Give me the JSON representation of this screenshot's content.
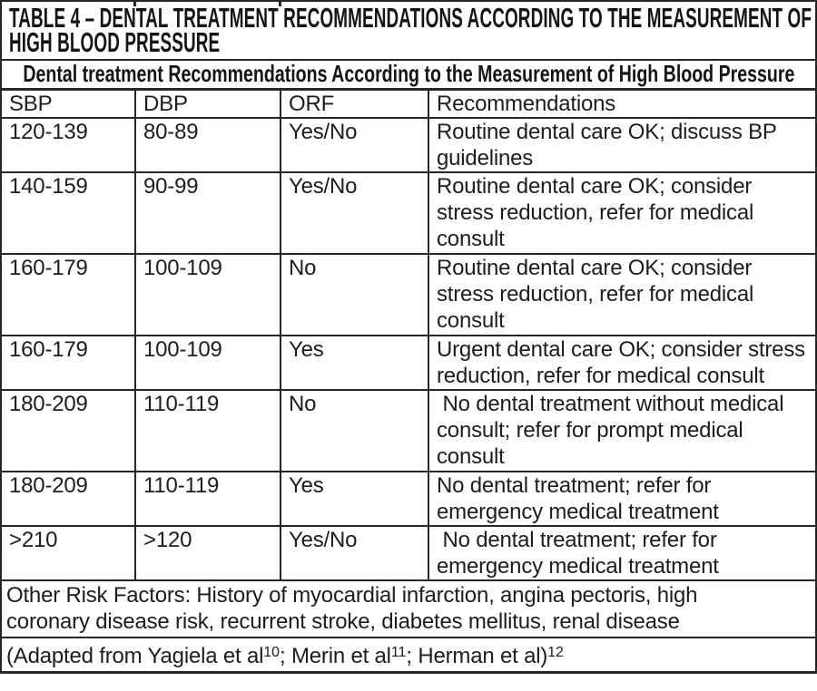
{
  "page": {
    "colors": {
      "background": "#ffffff",
      "border": "#272727",
      "text": "#1d1d1d",
      "title_text": "#141414"
    }
  },
  "table": {
    "title": "TABLE 4 – DENTAL TREATMENT RECOMMENDATIONS ACCORDING TO THE MEASUREMENT OF\nHIGH BLOOD PRESSURE",
    "subtitle": "Dental treatment Recommendations According to the Measurement of High Blood Pressure",
    "columns": [
      "SBP",
      "DBP",
      "ORF",
      "Recommendations"
    ],
    "rows": [
      {
        "sbp": "120-139",
        "dbp": "80-89",
        "orf": "Yes/No",
        "recommendation": "Routine dental care OK; discuss BP\nguidelines"
      },
      {
        "sbp": "140-159",
        "dbp": "90-99",
        "orf": "Yes/No",
        "recommendation": "Routine dental care OK; consider\nstress reduction, refer for medical\nconsult"
      },
      {
        "sbp": "160-179",
        "dbp": "100-109",
        "orf": "No",
        "recommendation": "Routine dental care OK; consider\nstress reduction, refer for medical\nconsult"
      },
      {
        "sbp": "160-179",
        "dbp": "100-109",
        "orf": "Yes",
        "recommendation": "Urgent dental care OK; consider stress\nreduction, refer for medical consult"
      },
      {
        "sbp": "180-209",
        "dbp": "110-119",
        "orf": "No",
        "recommendation": " No dental treatment without medical\nconsult; refer for prompt medical\nconsult"
      },
      {
        "sbp": "180-209",
        "dbp": "110-119",
        "orf": "Yes",
        "recommendation": "No dental treatment; refer for\nemergency medical treatment"
      },
      {
        "sbp": ">210",
        "dbp": ">120",
        "orf": "Yes/No",
        "recommendation": " No dental treatment; refer for\nemergency medical treatment"
      }
    ],
    "other_risk_factors": "Other Risk Factors: History of myocardial infarction, angina pectoris, high\ncoronary disease risk, recurrent stroke, diabetes mellitus, renal disease",
    "citation_segments": [
      {
        "text": "(Adapted from Yagiela et al"
      },
      {
        "sup": "10"
      },
      {
        "text": "; Merin et al"
      },
      {
        "sup": "11"
      },
      {
        "text": "; Herman et al)"
      },
      {
        "sup": "12"
      }
    ]
  }
}
